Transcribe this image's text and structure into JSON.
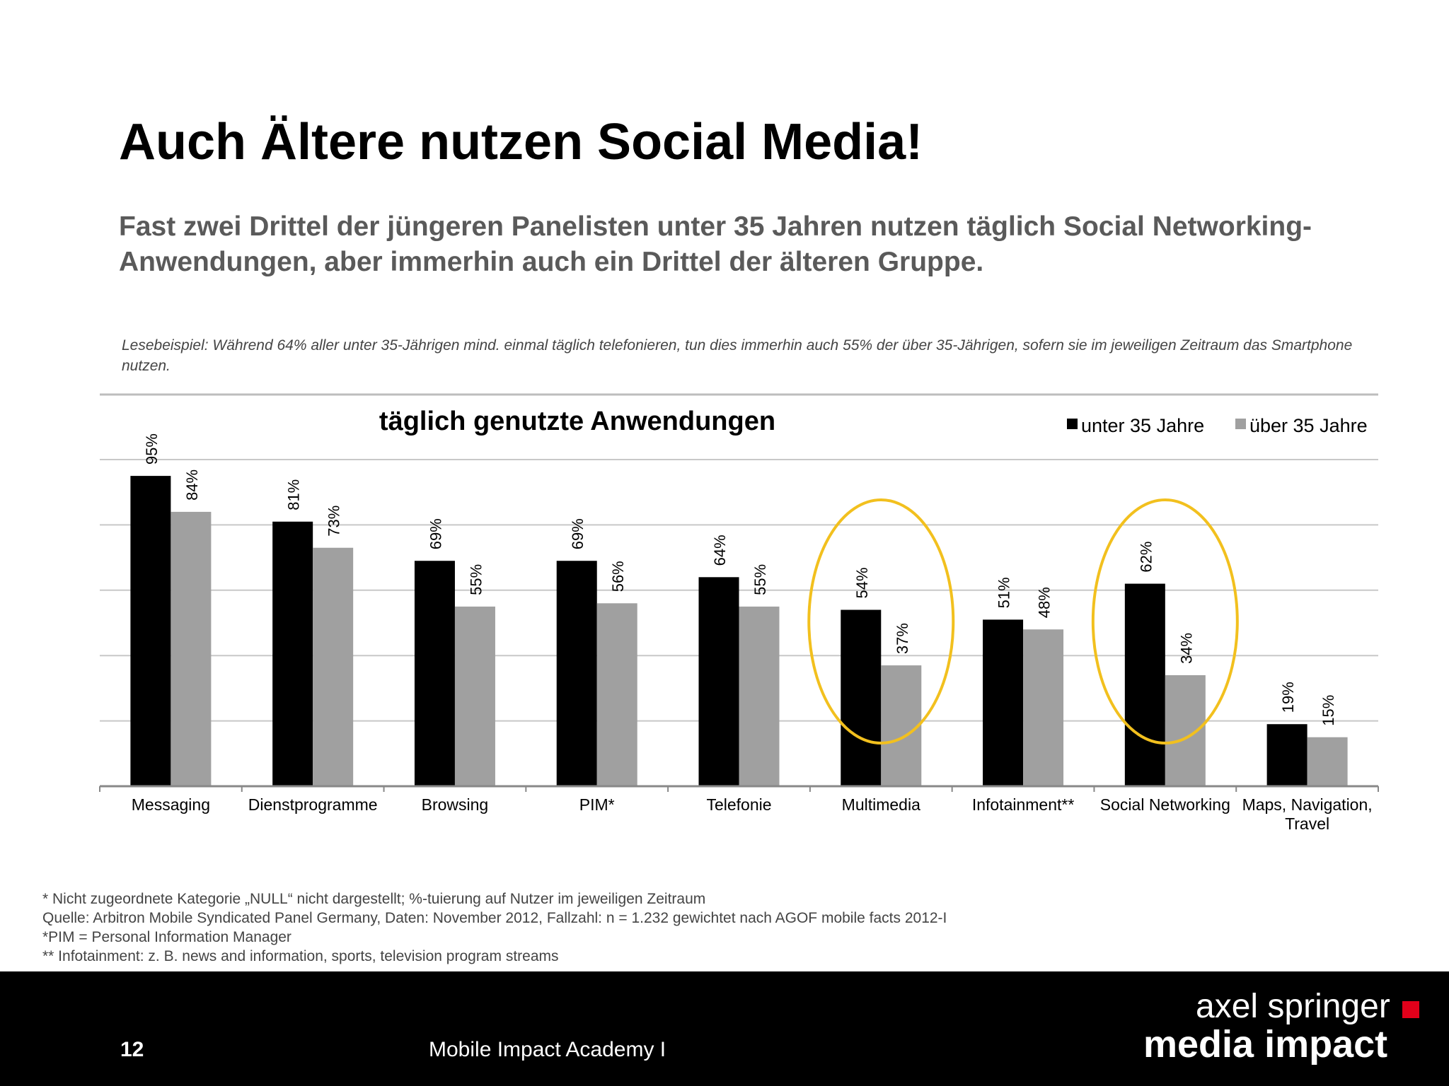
{
  "header": {
    "title": "Auch Ältere nutzen Social Media!",
    "subtitle": "Fast zwei Drittel der jüngeren Panelisten unter 35 Jahren nutzen täglich Social Networking-Anwendungen, aber immerhin auch ein Drittel der älteren Gruppe.",
    "reading_example": "Lesebeispiel:  Während 64% aller unter 35-Jährigen mind. einmal täglich telefonieren, tun dies  immerhin auch 55% der über 35-Jährigen, sofern sie im jeweiligen Zeitraum das Smartphone nutzen."
  },
  "chart_data": {
    "type": "bar",
    "title": "täglich genutzte Anwendungen",
    "categories": [
      "Messaging",
      "Dienstprogramme",
      "Browsing",
      "PIM*",
      "Telefonie",
      "Multimedia",
      "Infotainment**",
      "Social Networking",
      "Maps, Navigation, Travel"
    ],
    "series": [
      {
        "name": "unter 35 Jahre",
        "color": "#000000",
        "values": [
          95,
          81,
          69,
          69,
          64,
          54,
          51,
          62,
          19
        ]
      },
      {
        "name": "über 35 Jahre",
        "color": "#a0a0a0",
        "values": [
          84,
          73,
          55,
          56,
          55,
          37,
          48,
          34,
          15
        ]
      }
    ],
    "ylim": [
      0,
      100
    ],
    "value_suffix": "%",
    "grid": true,
    "legend_position": "top-right",
    "highlighted_categories": [
      "Multimedia",
      "Social Networking"
    ],
    "highlight_color": "#f2c01e"
  },
  "footnotes": [
    "* Nicht zugeordnete Kategorie „NULL“ nicht dargestellt; %-tuierung auf Nutzer im jeweiligen Zeitraum",
    "Quelle: Arbitron Mobile Syndicated Panel Germany, Daten: November 2012, Fallzahl: n = 1.232 gewichtet nach AGOF mobile facts 2012-I",
    "*PIM = Personal Information Manager",
    "** Infotainment: z. B. news and information, sports, television program streams"
  ],
  "footer": {
    "page_number": "12",
    "event": "Mobile Impact Academy I",
    "brand_line1": "axel springer",
    "brand_line2": "media impact"
  }
}
